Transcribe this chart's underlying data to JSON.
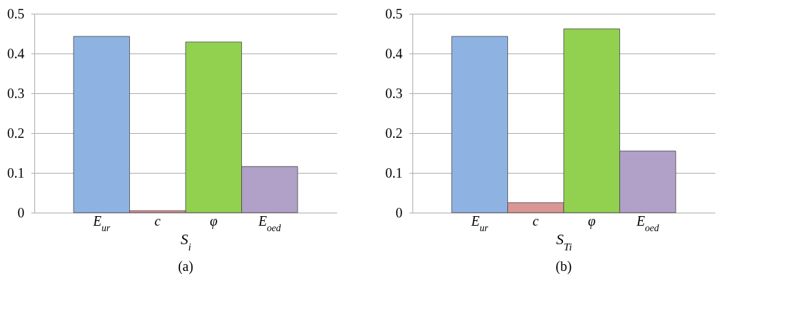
{
  "chart_data": [
    {
      "type": "bar",
      "categories": [
        "E$_{ur}$",
        "c",
        "φ",
        "E$_{oed}$"
      ],
      "values": [
        0.443,
        0.005,
        0.429,
        0.116
      ],
      "colors": [
        "#8eb3e3",
        "#da9694",
        "#92d050",
        "#b1a0c7"
      ],
      "xlabel": "S$_{i}$",
      "ylim": [
        0,
        0.5
      ],
      "yticks": [
        0,
        0.1,
        0.2,
        0.3,
        0.4,
        0.5
      ],
      "grid": "y",
      "annotations": [
        "(a)"
      ]
    },
    {
      "type": "bar",
      "categories": [
        "E$_{ur}$",
        "c",
        "φ",
        "E$_{oed}$"
      ],
      "values": [
        0.443,
        0.025,
        0.462,
        0.155
      ],
      "colors": [
        "#8eb3e3",
        "#da9694",
        "#92d050",
        "#b1a0c7"
      ],
      "xlabel": "S$_{Ti}$",
      "ylim": [
        0,
        0.5
      ],
      "yticks": [
        0,
        0.1,
        0.2,
        0.3,
        0.4,
        0.5
      ],
      "grid": "y",
      "annotations": [
        "(b)"
      ]
    }
  ]
}
